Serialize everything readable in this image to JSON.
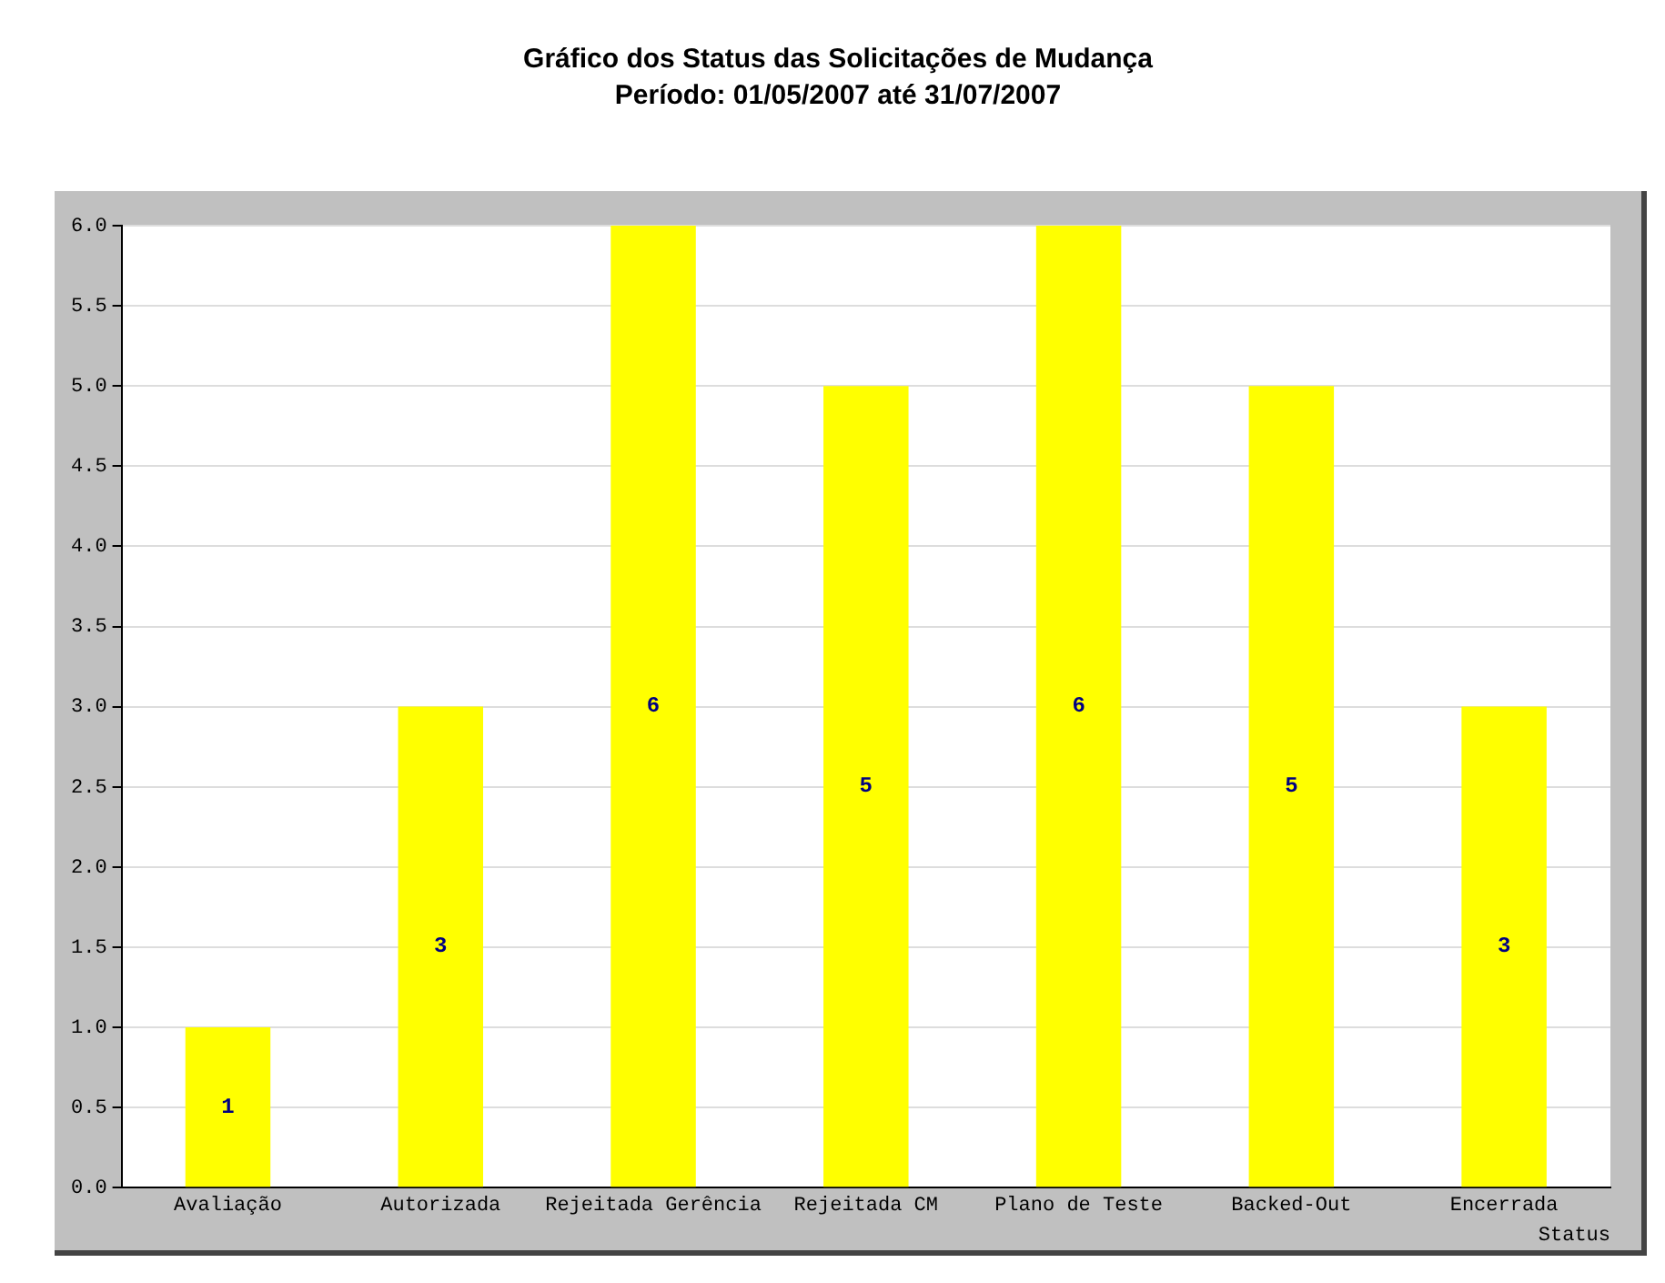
{
  "chart_data": {
    "type": "bar",
    "title": "Gráfico dos Status das Solicitações de Mudança",
    "subtitle": "Período: 01/05/2007 até 31/07/2007",
    "xlabel": "Status",
    "categories": [
      "Avaliação",
      "Autorizada",
      "Rejeitada Gerência",
      "Rejeitada CM",
      "Plano de Teste",
      "Backed-Out",
      "Encerrada"
    ],
    "values": [
      1,
      3,
      6,
      5,
      6,
      5,
      3
    ],
    "color": "#ffff00",
    "ylim": [
      0,
      6
    ],
    "yticks": [
      {
        "value": 0,
        "label": "0.0"
      },
      0.5,
      {
        "value": 1,
        "label": "1.0"
      },
      1.5,
      {
        "value": 2,
        "label": "2.0"
      },
      2.5,
      {
        "value": 3,
        "label": "3.0"
      },
      3.5,
      {
        "value": 4,
        "label": "4.0"
      },
      4.5,
      {
        "value": 5,
        "label": "5.0"
      },
      5.5,
      {
        "value": 6,
        "label": "6.0"
      }
    ],
    "grid": "y",
    "data_labels": true,
    "legend": false
  }
}
